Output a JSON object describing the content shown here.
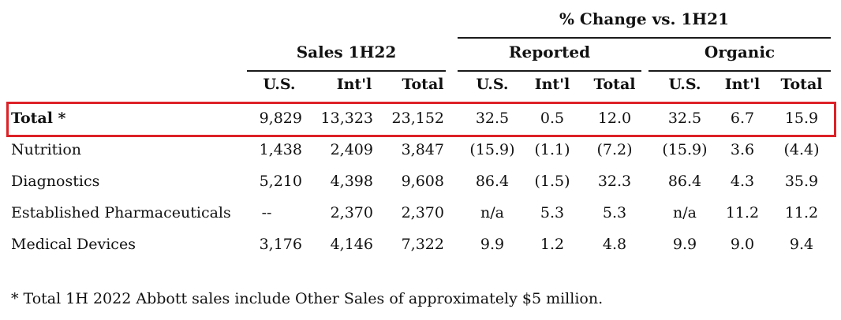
{
  "header": {
    "pct_change_title": "% Change vs. 1H21",
    "sales_group": "Sales 1H22",
    "reported_group": "Reported",
    "organic_group": "Organic",
    "sub_columns": [
      "U.S.",
      "Int'l",
      "Total"
    ]
  },
  "table": {
    "rows": [
      {
        "label": "Total *",
        "bold": true,
        "highlighted": true,
        "sales": [
          "9,829",
          "13,323",
          "23,152"
        ],
        "reported": [
          "32.5",
          "0.5",
          "12.0"
        ],
        "organic": [
          "32.5",
          "6.7",
          "15.9"
        ]
      },
      {
        "label": "Nutrition",
        "bold": false,
        "highlighted": false,
        "sales": [
          "1,438",
          "2,409",
          "3,847"
        ],
        "reported": [
          "(15.9)",
          "(1.1)",
          "(7.2)"
        ],
        "organic": [
          "(15.9)",
          "3.6",
          "(4.4)"
        ]
      },
      {
        "label": "Diagnostics",
        "bold": false,
        "highlighted": false,
        "sales": [
          "5,210",
          "4,398",
          "9,608"
        ],
        "reported": [
          "86.4",
          "(1.5)",
          "32.3"
        ],
        "organic": [
          "86.4",
          "4.3",
          "35.9"
        ]
      },
      {
        "label": "Established Pharmaceuticals",
        "bold": false,
        "highlighted": false,
        "sales": [
          "--",
          "2,370",
          "2,370"
        ],
        "reported": [
          "n/a",
          "5.3",
          "5.3"
        ],
        "organic": [
          "n/a",
          "11.2",
          "11.2"
        ]
      },
      {
        "label": "Medical Devices",
        "bold": false,
        "highlighted": false,
        "sales": [
          "3,176",
          "4,146",
          "7,322"
        ],
        "reported": [
          "9.9",
          "1.2",
          "4.8"
        ],
        "organic": [
          "9.9",
          "9.0",
          "9.4"
        ]
      }
    ]
  },
  "footnote": "* Total 1H 2022 Abbott sales include Other Sales of approximately $5 million.",
  "colors": {
    "highlight_border": "#dd2127",
    "rule": "#1a1a1a",
    "text": "#111111",
    "background": "#ffffff"
  }
}
